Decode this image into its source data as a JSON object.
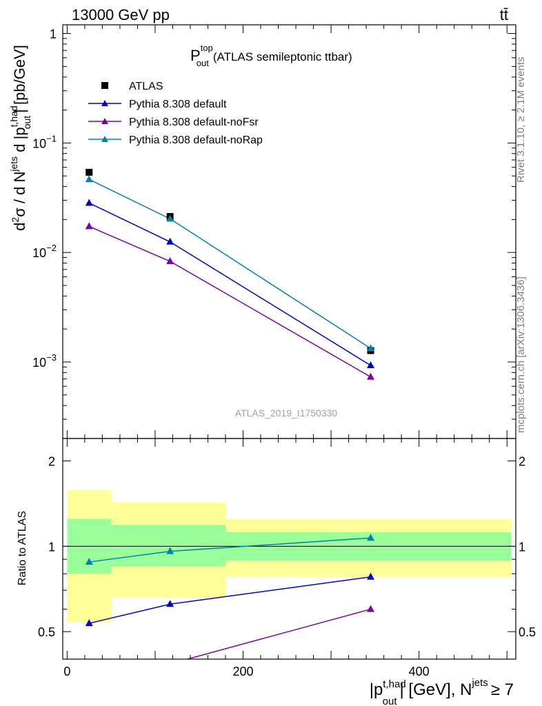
{
  "header": {
    "energy_label": "13000 GeV pp",
    "process_label": "tt̄"
  },
  "side": {
    "rivet": "Rivet 3.1.10, ≥ 2.1M events",
    "mcplots": "mcplots.cern.ch [arXiv:1306.3436]"
  },
  "chart_data": [
    {
      "type": "line",
      "panel": "main",
      "title_main": "P",
      "title_sup": "top",
      "title_sub": "out",
      "title_rest": "(ATLAS semileptonic ttbar)",
      "analysis_label": "ATLAS_2019_I1750330",
      "ylabel": "d²σ / d N^jets d |p_out^t,had| [pb/GeV]",
      "yscale": "log",
      "ylim": [
        0.0002,
        1.2
      ],
      "xlim": [
        -5,
        510
      ],
      "yticks": [
        {
          "v": 1,
          "base": "1",
          "exp": ""
        },
        {
          "v": 0.1,
          "base": "10",
          "exp": "−1"
        },
        {
          "v": 0.01,
          "base": "10",
          "exp": "−2"
        },
        {
          "v": 0.001,
          "base": "10",
          "exp": "−3"
        }
      ],
      "series": [
        {
          "name": "ATLAS",
          "marker": "square",
          "color": "#000000",
          "x": [
            25,
            117,
            345
          ],
          "y": [
            0.054,
            0.0213,
            0.00127
          ]
        },
        {
          "name": "Pythia 8.308 default",
          "marker": "triangle",
          "color": "#0000cc",
          "x": [
            25,
            117,
            345
          ],
          "y": [
            0.0283,
            0.0125,
            0.00093
          ]
        },
        {
          "name": "Pythia 8.308 default-noFsr",
          "marker": "triangle",
          "color": "#7a00a8",
          "x": [
            25,
            117,
            345
          ],
          "y": [
            0.0173,
            0.0083,
            0.00073
          ]
        },
        {
          "name": "Pythia 8.308 default-noRap",
          "marker": "triangle",
          "color": "#0080aa",
          "x": [
            25,
            117,
            345
          ],
          "y": [
            0.0465,
            0.0203,
            0.00133
          ]
        }
      ]
    },
    {
      "type": "line",
      "panel": "ratio",
      "ylabel": "Ratio to ATLAS",
      "xlabel": "|p_out^t,had| [GeV], N^jets ≥ 7",
      "yscale": "log",
      "ylim": [
        0.4,
        2.4
      ],
      "xlim": [
        -5,
        510
      ],
      "yticks": [
        {
          "v": 2,
          "label": "2"
        },
        {
          "v": 1,
          "label": "1"
        },
        {
          "v": 0.5,
          "label": "0.5"
        }
      ],
      "xticks": [
        0,
        200,
        400
      ],
      "bands": [
        {
          "x0": 0,
          "x1": 50,
          "yellow": [
            0.54,
            1.58
          ],
          "green": [
            0.8,
            1.25
          ]
        },
        {
          "x0": 50,
          "x1": 180,
          "yellow": [
            0.66,
            1.43
          ],
          "green": [
            0.85,
            1.19
          ]
        },
        {
          "x0": 180,
          "x1": 505,
          "yellow": [
            0.78,
            1.25
          ],
          "green": [
            0.89,
            1.12
          ]
        }
      ],
      "series": [
        {
          "name": "Pythia 8.308 default",
          "color": "#0000cc",
          "x": [
            25,
            117,
            345
          ],
          "y": [
            0.535,
            0.625,
            0.78
          ]
        },
        {
          "name": "Pythia 8.308 default-noFsr",
          "color": "#7a00a8",
          "x": [
            117,
            345
          ],
          "y": [
            0.385,
            0.6
          ]
        },
        {
          "name": "Pythia 8.308 default-noRap",
          "color": "#0080aa",
          "x": [
            25,
            117,
            345
          ],
          "y": [
            0.88,
            0.96,
            1.07
          ]
        }
      ]
    }
  ]
}
